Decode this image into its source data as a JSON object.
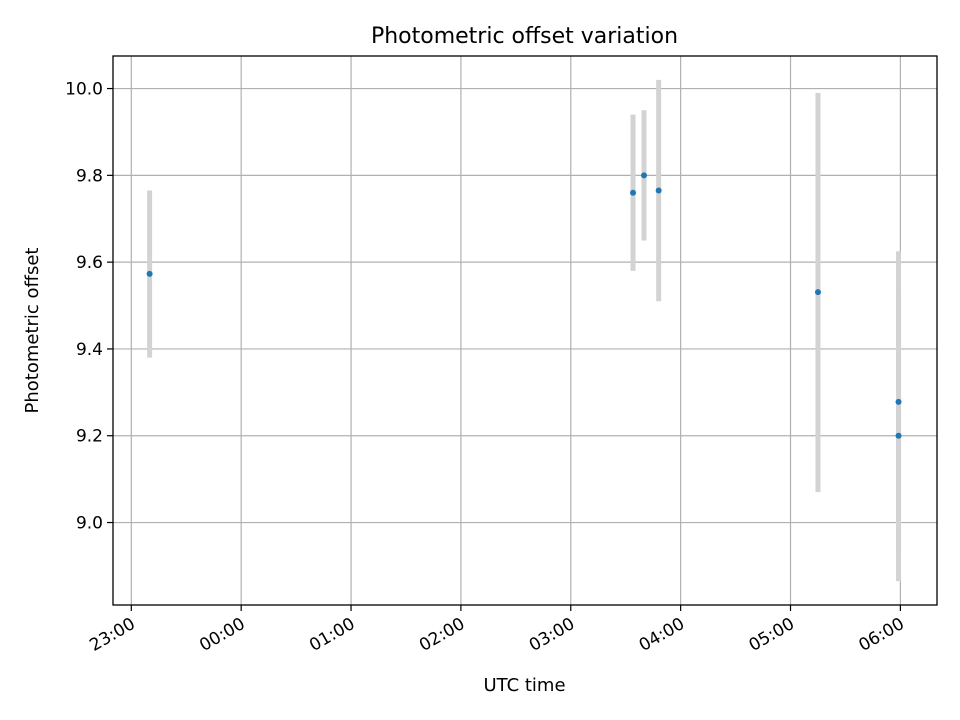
{
  "chart_data": {
    "type": "scatter",
    "title": "Photometric offset variation",
    "xlabel": "UTC time",
    "ylabel": "Photometric offset",
    "x_axis_type": "time",
    "xlim": [
      "22:50",
      "06:20"
    ],
    "ylim": [
      8.81,
      10.075
    ],
    "grid": true,
    "x_ticks": [
      "23:00",
      "00:00",
      "01:00",
      "02:00",
      "03:00",
      "04:00",
      "05:00",
      "06:00"
    ],
    "y_ticks": [
      "9.0",
      "9.2",
      "9.4",
      "9.6",
      "9.8",
      "10.0"
    ],
    "series": [
      {
        "marker_color": "#1f77b4",
        "errorbar_color": "#d3d3d3",
        "points": [
          {
            "t": "23:10",
            "y": 9.573,
            "y_low": 9.38,
            "y_high": 9.765
          },
          {
            "t": "03:34",
            "y": 9.76,
            "y_low": 9.58,
            "y_high": 9.94
          },
          {
            "t": "03:40",
            "y": 9.8,
            "y_low": 9.65,
            "y_high": 9.95
          },
          {
            "t": "03:48",
            "y": 9.765,
            "y_low": 9.51,
            "y_high": 10.02
          },
          {
            "t": "05:15",
            "y": 9.531,
            "y_low": 9.07,
            "y_high": 9.99
          },
          {
            "t": "05:59",
            "y": 9.278,
            "y_low": 8.93,
            "y_high": 9.625
          },
          {
            "t": "05:59",
            "y": 9.2,
            "y_low": 8.865,
            "y_high": 9.535
          }
        ]
      }
    ]
  }
}
